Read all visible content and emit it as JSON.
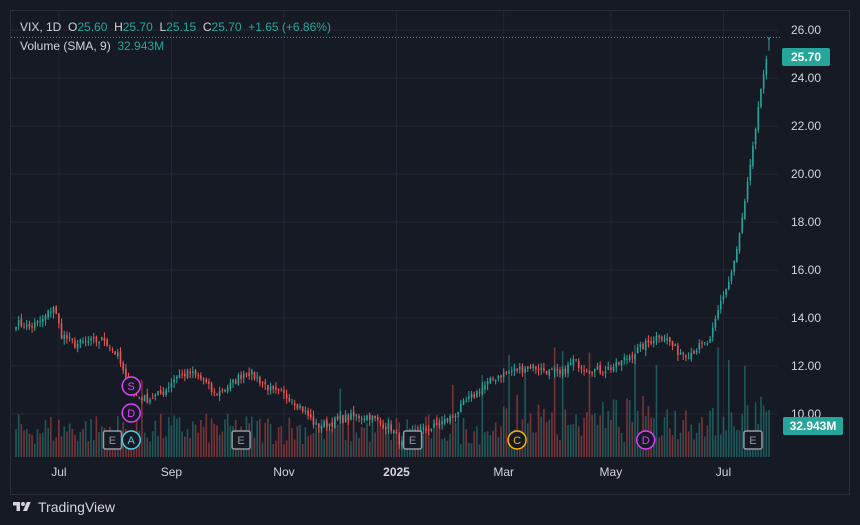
{
  "legend": {
    "symbol": "VIX, 1D",
    "open_label": "O",
    "open": "25.60",
    "high_label": "H",
    "high": "25.70",
    "low_label": "L",
    "low": "25.15",
    "close_label": "C",
    "close": "25.70",
    "change": "+1.65 (+6.86%)",
    "volume_label": "Volume (SMA, 9)",
    "volume_value": "32.943M"
  },
  "price_tag": "25.70",
  "volume_tag": "32.943M",
  "brand": "TradingView",
  "colors": {
    "up": "#26a69a",
    "down": "#ef5350",
    "bg": "#161a25",
    "grid": "#232733",
    "axis_text": "#d1d4dc"
  },
  "chart_data": {
    "type": "candlestick",
    "title": "VIX, 1D",
    "ylim": [
      8.2,
      26.8
    ],
    "y_ticks": [
      "10.00",
      "12.00",
      "14.00",
      "16.00",
      "18.00",
      "20.00",
      "22.00",
      "24.00",
      "26.00"
    ],
    "x_ticks": [
      {
        "label": "Jul",
        "bar": 16
      },
      {
        "label": "Sep",
        "bar": 58
      },
      {
        "label": "Nov",
        "bar": 100
      },
      {
        "label": "2025",
        "bar": 142
      },
      {
        "label": "Mar",
        "bar": 182
      },
      {
        "label": "May",
        "bar": 222
      },
      {
        "label": "Jul",
        "bar": 264
      }
    ],
    "bar_count": 282,
    "anchors": [
      [
        0,
        13.8
      ],
      [
        5,
        13.6
      ],
      [
        10,
        13.9
      ],
      [
        14,
        14.5
      ],
      [
        17,
        13.3
      ],
      [
        22,
        12.9
      ],
      [
        28,
        13.0
      ],
      [
        33,
        13.1
      ],
      [
        38,
        12.4
      ],
      [
        41,
        11.4
      ],
      [
        44,
        10.8
      ],
      [
        49,
        10.6
      ],
      [
        55,
        10.9
      ],
      [
        60,
        11.6
      ],
      [
        65,
        11.7
      ],
      [
        70,
        11.4
      ],
      [
        74,
        10.8
      ],
      [
        80,
        11.2
      ],
      [
        86,
        11.8
      ],
      [
        91,
        11.4
      ],
      [
        96,
        10.9
      ],
      [
        102,
        10.7
      ],
      [
        107,
        10.2
      ],
      [
        112,
        9.5
      ],
      [
        117,
        9.6
      ],
      [
        122,
        9.8
      ],
      [
        127,
        9.9
      ],
      [
        132,
        9.9
      ],
      [
        136,
        9.6
      ],
      [
        140,
        9.4
      ],
      [
        144,
        8.7
      ],
      [
        148,
        9.2
      ],
      [
        152,
        9.3
      ],
      [
        157,
        9.5
      ],
      [
        163,
        9.9
      ],
      [
        168,
        10.5
      ],
      [
        173,
        11.0
      ],
      [
        180,
        11.6
      ],
      [
        186,
        11.8
      ],
      [
        192,
        12.0
      ],
      [
        198,
        11.8
      ],
      [
        203,
        11.6
      ],
      [
        208,
        12.2
      ],
      [
        213,
        11.9
      ],
      [
        218,
        11.8
      ],
      [
        224,
        12.0
      ],
      [
        230,
        12.5
      ],
      [
        235,
        12.9
      ],
      [
        240,
        13.3
      ],
      [
        243,
        13.1
      ],
      [
        247,
        12.6
      ],
      [
        251,
        12.5
      ],
      [
        255,
        12.8
      ],
      [
        259,
        13.0
      ],
      [
        263,
        14.7
      ],
      [
        266,
        15.5
      ],
      [
        269,
        16.8
      ],
      [
        272,
        18.8
      ],
      [
        275,
        21.0
      ],
      [
        277,
        22.8
      ],
      [
        279,
        24.0
      ],
      [
        281,
        25.7
      ]
    ],
    "volume": {
      "label": "Volume (SMA, 9)",
      "sma": 32.943,
      "unit": "M",
      "range": [
        0,
        90
      ],
      "spikes": [
        [
          47,
          62
        ],
        [
          121,
          55
        ],
        [
          163,
          58
        ],
        [
          174,
          66
        ],
        [
          184,
          82
        ],
        [
          190,
          72
        ],
        [
          201,
          88
        ],
        [
          204,
          85
        ],
        [
          214,
          84
        ],
        [
          231,
          90
        ],
        [
          239,
          74
        ],
        [
          262,
          88
        ],
        [
          266,
          78
        ],
        [
          272,
          73
        ]
      ]
    },
    "last": {
      "open": 25.6,
      "high": 25.7,
      "low": 25.15,
      "close": 25.7
    }
  },
  "event_markers": [
    {
      "letter": "S",
      "bar": 43,
      "row": 0,
      "color": "#e040fb"
    },
    {
      "letter": "D",
      "bar": 43,
      "row": 1,
      "color": "#e040fb"
    },
    {
      "letter": "A",
      "bar": 43,
      "row": 2,
      "color": "#4dd0e1"
    },
    {
      "letter": "C",
      "bar": 187,
      "row": 2,
      "color": "#ffb300"
    },
    {
      "letter": "D",
      "bar": 235,
      "row": 2,
      "color": "#e040fb"
    }
  ],
  "earnings_markers": [
    {
      "letter": "E",
      "bar": 36
    },
    {
      "letter": "E",
      "bar": 84
    },
    {
      "letter": "E",
      "bar": 148
    },
    {
      "letter": "E",
      "bar": 275
    }
  ]
}
